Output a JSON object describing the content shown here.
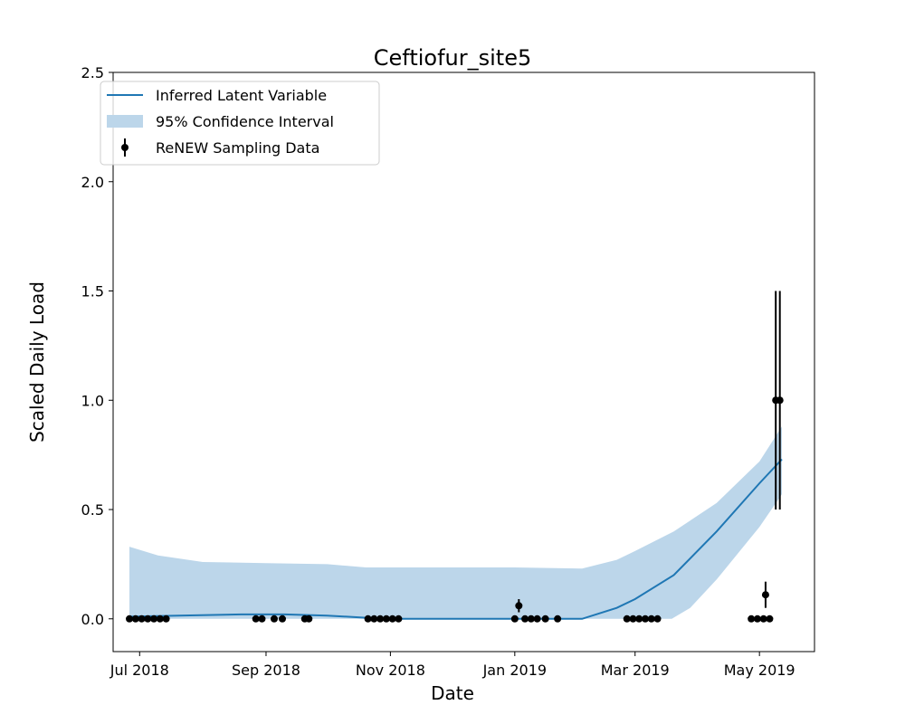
{
  "chart_data": {
    "type": "line",
    "title": "Ceftiofur_site5",
    "xlabel": "Date",
    "ylabel": "Scaled Daily Load",
    "xlim": [
      "2018-06-18",
      "2019-05-28"
    ],
    "ylim": [
      -0.15,
      2.5
    ],
    "grid": false,
    "legend_position": "top-left",
    "x_ticks": [
      {
        "date": "2018-07-01",
        "label": "Jul 2018"
      },
      {
        "date": "2018-09-01",
        "label": "Sep 2018"
      },
      {
        "date": "2018-11-01",
        "label": "Nov 2018"
      },
      {
        "date": "2019-01-01",
        "label": "Jan 2019"
      },
      {
        "date": "2019-03-01",
        "label": "Mar 2019"
      },
      {
        "date": "2019-05-01",
        "label": "May 2019"
      }
    ],
    "y_ticks": [
      {
        "value": 0.0,
        "label": "0.0"
      },
      {
        "value": 0.5,
        "label": "0.5"
      },
      {
        "value": 1.0,
        "label": "1.0"
      },
      {
        "value": 1.5,
        "label": "1.5"
      },
      {
        "value": 2.0,
        "label": "2.0"
      },
      {
        "value": 2.5,
        "label": "2.5"
      }
    ],
    "colors": {
      "line": "#1f77b4",
      "band": "#bcd6ea",
      "points": "#000000"
    },
    "series": [
      {
        "name": "Inferred Latent Variable",
        "kind": "line",
        "points": [
          {
            "x": "2018-06-26",
            "y": 0.01
          },
          {
            "x": "2018-07-20",
            "y": 0.015
          },
          {
            "x": "2018-08-20",
            "y": 0.02
          },
          {
            "x": "2018-09-10",
            "y": 0.02
          },
          {
            "x": "2018-10-01",
            "y": 0.015
          },
          {
            "x": "2018-10-20",
            "y": 0.005
          },
          {
            "x": "2018-10-28",
            "y": 0.0
          },
          {
            "x": "2019-02-03",
            "y": 0.0
          },
          {
            "x": "2019-02-20",
            "y": 0.05
          },
          {
            "x": "2019-03-01",
            "y": 0.09
          },
          {
            "x": "2019-03-20",
            "y": 0.2
          },
          {
            "x": "2019-04-10",
            "y": 0.4
          },
          {
            "x": "2019-05-01",
            "y": 0.62
          },
          {
            "x": "2019-05-12",
            "y": 0.73
          }
        ]
      },
      {
        "name": "95% Confidence Interval",
        "kind": "band",
        "upper": [
          {
            "x": "2018-06-26",
            "y": 0.33
          },
          {
            "x": "2018-07-10",
            "y": 0.29
          },
          {
            "x": "2018-08-01",
            "y": 0.26
          },
          {
            "x": "2018-09-01",
            "y": 0.255
          },
          {
            "x": "2018-10-01",
            "y": 0.25
          },
          {
            "x": "2018-10-20",
            "y": 0.235
          },
          {
            "x": "2018-11-15",
            "y": 0.235
          },
          {
            "x": "2019-01-01",
            "y": 0.235
          },
          {
            "x": "2019-02-03",
            "y": 0.23
          },
          {
            "x": "2019-02-20",
            "y": 0.27
          },
          {
            "x": "2019-03-01",
            "y": 0.31
          },
          {
            "x": "2019-03-20",
            "y": 0.4
          },
          {
            "x": "2019-04-10",
            "y": 0.53
          },
          {
            "x": "2019-05-01",
            "y": 0.72
          },
          {
            "x": "2019-05-12",
            "y": 0.88
          }
        ],
        "lower": [
          {
            "x": "2018-06-26",
            "y": 0.0
          },
          {
            "x": "2019-03-19",
            "y": 0.0
          },
          {
            "x": "2019-03-28",
            "y": 0.05
          },
          {
            "x": "2019-04-10",
            "y": 0.18
          },
          {
            "x": "2019-05-01",
            "y": 0.42
          },
          {
            "x": "2019-05-12",
            "y": 0.57
          }
        ]
      },
      {
        "name": "ReNEW Sampling Data",
        "kind": "errorbar",
        "points": [
          {
            "x": "2018-06-26",
            "y": 0.0
          },
          {
            "x": "2018-06-29",
            "y": 0.0
          },
          {
            "x": "2018-07-02",
            "y": 0.0
          },
          {
            "x": "2018-07-05",
            "y": 0.0
          },
          {
            "x": "2018-07-08",
            "y": 0.0
          },
          {
            "x": "2018-07-11",
            "y": 0.0
          },
          {
            "x": "2018-07-14",
            "y": 0.0
          },
          {
            "x": "2018-08-27",
            "y": 0.0
          },
          {
            "x": "2018-08-30",
            "y": 0.0
          },
          {
            "x": "2018-09-05",
            "y": 0.0
          },
          {
            "x": "2018-09-09",
            "y": 0.0
          },
          {
            "x": "2018-09-20",
            "y": 0.0
          },
          {
            "x": "2018-09-22",
            "y": 0.0
          },
          {
            "x": "2018-10-21",
            "y": 0.0
          },
          {
            "x": "2018-10-24",
            "y": 0.0
          },
          {
            "x": "2018-10-27",
            "y": 0.0
          },
          {
            "x": "2018-10-30",
            "y": 0.0
          },
          {
            "x": "2018-11-02",
            "y": 0.0
          },
          {
            "x": "2018-11-05",
            "y": 0.0
          },
          {
            "x": "2019-01-01",
            "y": 0.0
          },
          {
            "x": "2019-01-03",
            "y": 0.06,
            "err": 0.03
          },
          {
            "x": "2019-01-06",
            "y": 0.0
          },
          {
            "x": "2019-01-09",
            "y": 0.0
          },
          {
            "x": "2019-01-12",
            "y": 0.0
          },
          {
            "x": "2019-01-16",
            "y": 0.0
          },
          {
            "x": "2019-01-22",
            "y": 0.0
          },
          {
            "x": "2019-02-25",
            "y": 0.0
          },
          {
            "x": "2019-02-28",
            "y": 0.0
          },
          {
            "x": "2019-03-03",
            "y": 0.0
          },
          {
            "x": "2019-03-06",
            "y": 0.0
          },
          {
            "x": "2019-03-09",
            "y": 0.0
          },
          {
            "x": "2019-03-12",
            "y": 0.0
          },
          {
            "x": "2019-04-27",
            "y": 0.0
          },
          {
            "x": "2019-04-30",
            "y": 0.0
          },
          {
            "x": "2019-05-03",
            "y": 0.0
          },
          {
            "x": "2019-05-04",
            "y": 0.11,
            "err": 0.06
          },
          {
            "x": "2019-05-06",
            "y": 0.0
          },
          {
            "x": "2019-05-09",
            "y": 1.0,
            "err": 0.5
          },
          {
            "x": "2019-05-11",
            "y": 1.0,
            "err": 0.5
          }
        ]
      }
    ]
  }
}
